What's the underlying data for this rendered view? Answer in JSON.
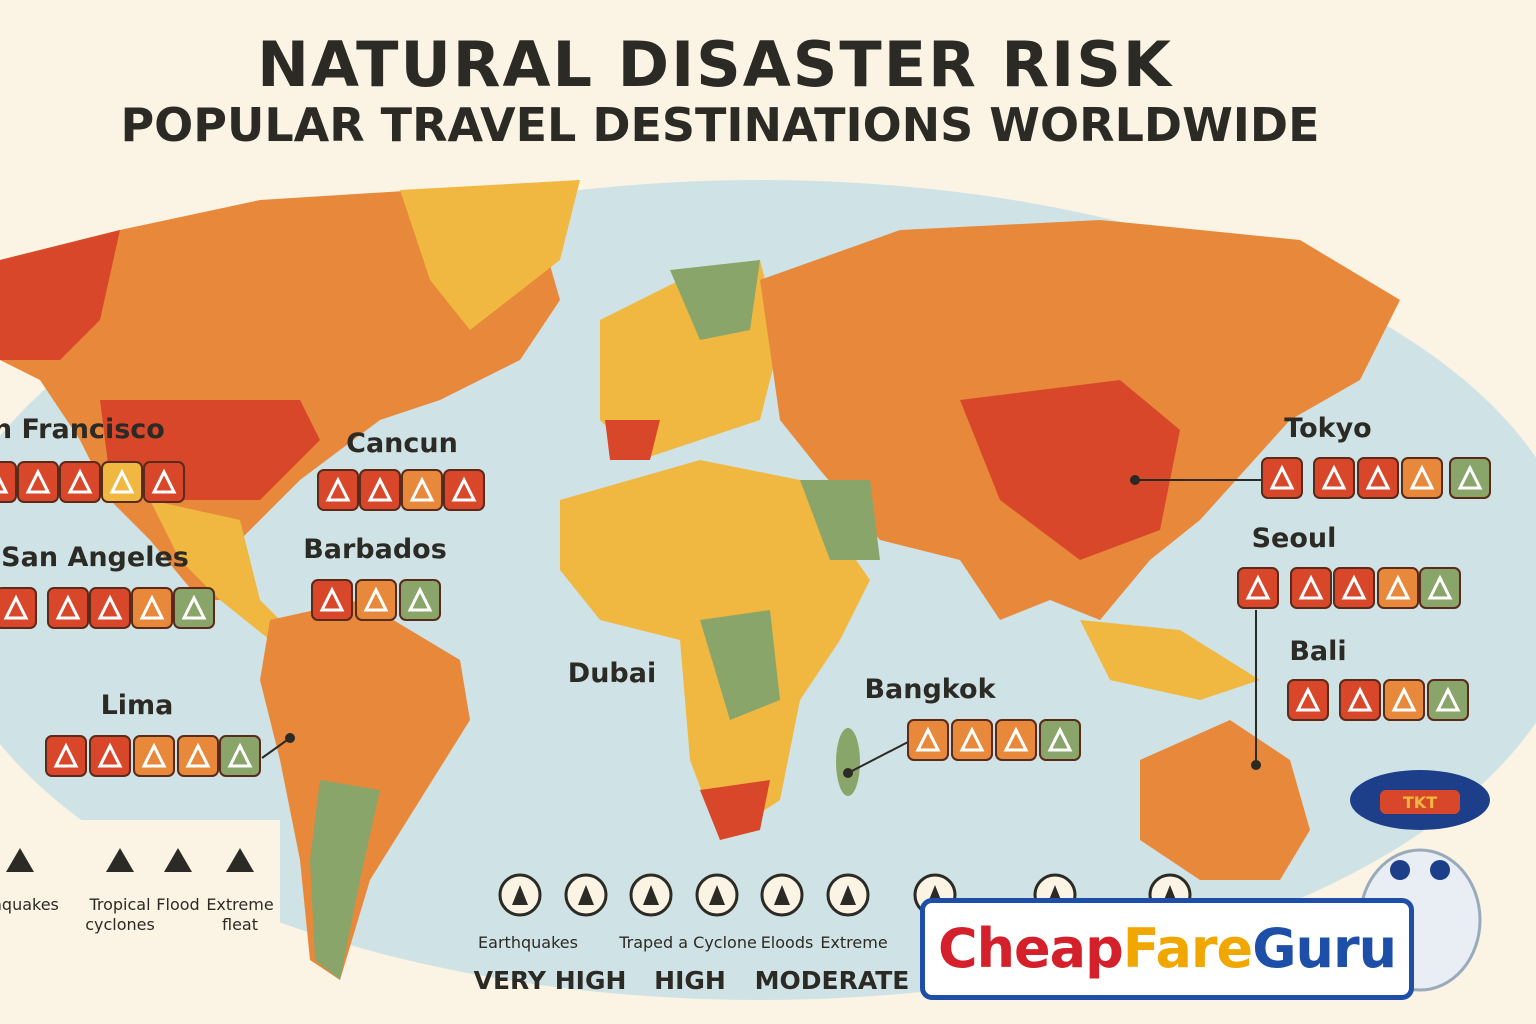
{
  "header": {
    "title": "NATURAL DISASTER RISK",
    "subtitle": "POPULAR TRAVEL DESTINATIONS WORLDWIDE"
  },
  "locations": [
    {
      "name": "San Francisco",
      "icons": [
        "#d9472b",
        "#d9472b",
        "#d9472b",
        "#f0b840",
        "#d9472b"
      ]
    },
    {
      "name": "Cancun",
      "icons": [
        "#d9472b",
        "#d9472b",
        "#e8883a",
        "#d9472b"
      ]
    },
    {
      "name": "San Angeles",
      "icons": [
        "#d9472b",
        "#d9472b",
        "#d9472b",
        "#e8883a",
        "#8aa56a"
      ]
    },
    {
      "name": "Barbados",
      "icons": [
        "#d9472b",
        "#e8883a",
        "#8aa56a"
      ]
    },
    {
      "name": "Lima",
      "icons": [
        "#d9472b",
        "#d9472b",
        "#e8883a",
        "#e8883a",
        "#8aa56a"
      ]
    },
    {
      "name": "Dubai",
      "icons": []
    },
    {
      "name": "Bangkok",
      "icons": [
        "#e8883a",
        "#e8883a",
        "#e8883a",
        "#8aa56a"
      ]
    },
    {
      "name": "Tokyo",
      "icons": [
        "#d9472b",
        "#d9472b",
        "#d9472b",
        "#e8883a",
        "#8aa56a"
      ]
    },
    {
      "name": "Seoul",
      "icons": [
        "#d9472b",
        "#d9472b",
        "#d9472b",
        "#e8883a",
        "#8aa56a"
      ]
    },
    {
      "name": "Bali",
      "icons": [
        "#d9472b",
        "#d9472b",
        "#e8883a",
        "#8aa56a"
      ]
    }
  ],
  "legend_left": {
    "items": [
      "'thquakes",
      "Tropical cyclones",
      "Flood",
      "Extreme fleat"
    ]
  },
  "legend_bottom": {
    "items": [
      "Earthquakes",
      "Traped a Cyclone",
      "Eloods",
      "Extreme"
    ],
    "levels": [
      "VERY HIGH",
      "HIGH",
      "MODERATE"
    ]
  },
  "logo": {
    "parts": [
      "Cheap",
      "Fare",
      "Guru"
    ],
    "badge": "TKT"
  }
}
